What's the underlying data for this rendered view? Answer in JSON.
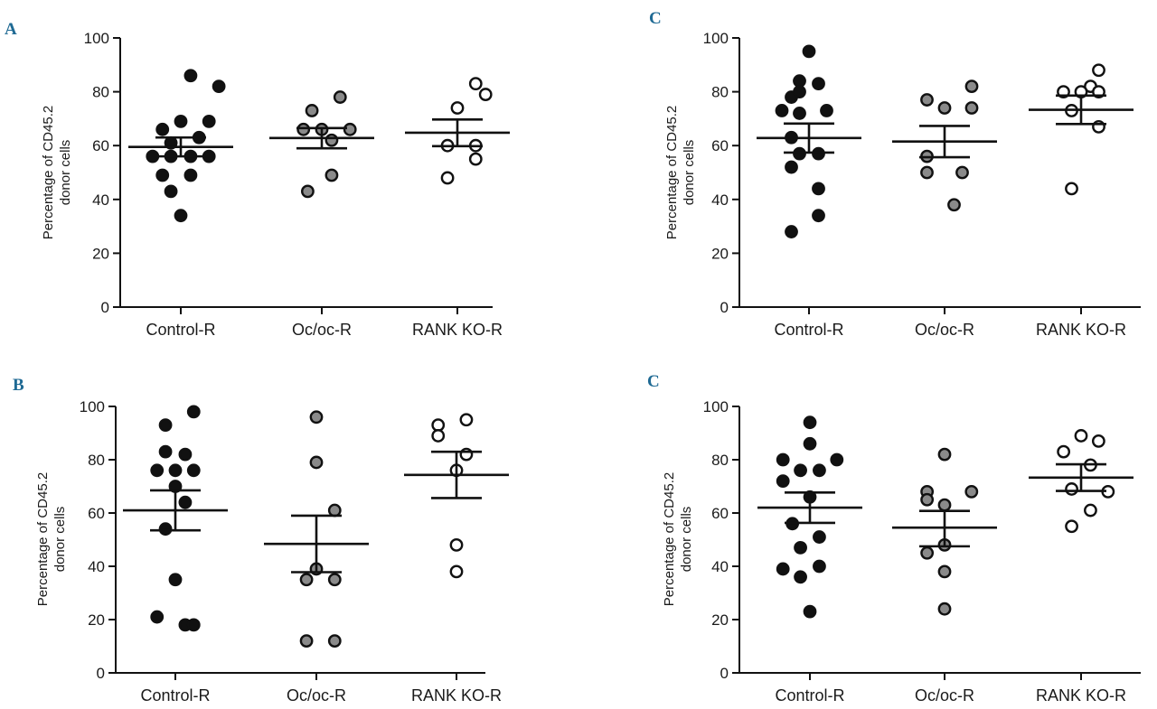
{
  "figure": {
    "letter_color": "#1f6a94",
    "mean_line_color": "#111111",
    "marker_colors": {
      "filled_black": "#111111",
      "filled_gray": "#8a8a8a",
      "open": "#ffffff"
    }
  },
  "chart_data": [
    {
      "type": "scatter",
      "panel_letter": "A",
      "ylabel": "Percentage of CD45.2\ndonor cells",
      "ylim": [
        0,
        100
      ],
      "yticks": [
        0,
        20,
        40,
        60,
        80,
        100
      ],
      "categories": [
        "Control-R",
        "Oc/oc-R",
        "RANK KO-R"
      ],
      "series": [
        {
          "name": "Control-R",
          "marker": "filled_black",
          "mean": 59.5,
          "sem": [
            56.0,
            63.0
          ],
          "points": [
            {
              "x": 0.07,
              "y": 86
            },
            {
              "x": 0.27,
              "y": 82
            },
            {
              "x": 0.0,
              "y": 69
            },
            {
              "x": 0.2,
              "y": 69
            },
            {
              "x": -0.13,
              "y": 66
            },
            {
              "x": 0.13,
              "y": 63
            },
            {
              "x": -0.07,
              "y": 61
            },
            {
              "x": -0.2,
              "y": 56
            },
            {
              "x": -0.07,
              "y": 56
            },
            {
              "x": 0.07,
              "y": 56
            },
            {
              "x": 0.2,
              "y": 56
            },
            {
              "x": -0.13,
              "y": 49
            },
            {
              "x": 0.07,
              "y": 49
            },
            {
              "x": -0.07,
              "y": 43
            },
            {
              "x": 0.0,
              "y": 34
            }
          ]
        },
        {
          "name": "Oc/oc-R",
          "marker": "filled_gray",
          "mean": 62.8,
          "sem": [
            59.0,
            66.5
          ],
          "points": [
            {
              "x": 0.13,
              "y": 78
            },
            {
              "x": -0.07,
              "y": 73
            },
            {
              "x": -0.13,
              "y": 66
            },
            {
              "x": 0.0,
              "y": 66
            },
            {
              "x": 0.2,
              "y": 66
            },
            {
              "x": 0.07,
              "y": 62
            },
            {
              "x": 0.07,
              "y": 49
            },
            {
              "x": -0.1,
              "y": 43
            }
          ]
        },
        {
          "name": "RANK KO-R",
          "marker": "open",
          "mean": 64.8,
          "sem": [
            59.8,
            69.7
          ],
          "points": [
            {
              "x": 0.13,
              "y": 83
            },
            {
              "x": 0.2,
              "y": 79
            },
            {
              "x": 0.0,
              "y": 74
            },
            {
              "x": -0.07,
              "y": 60
            },
            {
              "x": 0.13,
              "y": 60
            },
            {
              "x": 0.13,
              "y": 55
            },
            {
              "x": -0.07,
              "y": 48
            }
          ]
        }
      ]
    },
    {
      "type": "scatter",
      "panel_letter": "C",
      "ylabel": "Percentage of CD45.2\ndonor cells",
      "ylim": [
        0,
        100
      ],
      "yticks": [
        0,
        20,
        40,
        60,
        80,
        100
      ],
      "categories": [
        "Control-R",
        "Oc/oc-R",
        "RANK KO-R"
      ],
      "series": [
        {
          "name": "Control-R",
          "marker": "filled_black",
          "mean": 62.8,
          "sem": [
            57.4,
            68.2
          ],
          "points": [
            {
              "x": 0.0,
              "y": 95
            },
            {
              "x": -0.07,
              "y": 84
            },
            {
              "x": 0.07,
              "y": 83
            },
            {
              "x": -0.13,
              "y": 78
            },
            {
              "x": -0.07,
              "y": 80
            },
            {
              "x": -0.2,
              "y": 73
            },
            {
              "x": -0.07,
              "y": 72
            },
            {
              "x": 0.13,
              "y": 73
            },
            {
              "x": -0.13,
              "y": 63
            },
            {
              "x": -0.07,
              "y": 57
            },
            {
              "x": 0.07,
              "y": 57
            },
            {
              "x": -0.13,
              "y": 52
            },
            {
              "x": 0.07,
              "y": 44
            },
            {
              "x": 0.07,
              "y": 34
            },
            {
              "x": -0.13,
              "y": 28
            }
          ]
        },
        {
          "name": "Oc/oc-R",
          "marker": "filled_gray",
          "mean": 61.5,
          "sem": [
            55.7,
            67.3
          ],
          "points": [
            {
              "x": 0.2,
              "y": 82
            },
            {
              "x": -0.13,
              "y": 77
            },
            {
              "x": 0.0,
              "y": 74
            },
            {
              "x": 0.2,
              "y": 74
            },
            {
              "x": -0.13,
              "y": 56
            },
            {
              "x": -0.13,
              "y": 50
            },
            {
              "x": 0.13,
              "y": 50
            },
            {
              "x": 0.07,
              "y": 38
            }
          ]
        },
        {
          "name": "RANK KO-R",
          "marker": "open",
          "mean": 73.3,
          "sem": [
            68.0,
            78.6
          ],
          "points": [
            {
              "x": 0.13,
              "y": 88
            },
            {
              "x": 0.07,
              "y": 82
            },
            {
              "x": -0.13,
              "y": 80
            },
            {
              "x": 0.0,
              "y": 80
            },
            {
              "x": 0.13,
              "y": 80
            },
            {
              "x": -0.07,
              "y": 73
            },
            {
              "x": 0.13,
              "y": 67
            },
            {
              "x": -0.07,
              "y": 44
            }
          ]
        }
      ]
    },
    {
      "type": "scatter",
      "panel_letter": "B",
      "ylabel": "Percentage of CD45.2\ndonor cells",
      "ylim": [
        0,
        100
      ],
      "yticks": [
        0,
        20,
        40,
        60,
        80,
        100
      ],
      "categories": [
        "Control-R",
        "Oc/oc-R",
        "RANK KO-R"
      ],
      "series": [
        {
          "name": "Control-R",
          "marker": "filled_black",
          "mean": 61.0,
          "sem": [
            53.5,
            68.5
          ],
          "points": [
            {
              "x": 0.13,
              "y": 98
            },
            {
              "x": -0.07,
              "y": 93
            },
            {
              "x": -0.07,
              "y": 83
            },
            {
              "x": 0.07,
              "y": 82
            },
            {
              "x": -0.13,
              "y": 76
            },
            {
              "x": 0.0,
              "y": 76
            },
            {
              "x": 0.13,
              "y": 76
            },
            {
              "x": 0.0,
              "y": 70
            },
            {
              "x": 0.07,
              "y": 64
            },
            {
              "x": -0.07,
              "y": 54
            },
            {
              "x": 0.0,
              "y": 35
            },
            {
              "x": -0.13,
              "y": 21
            },
            {
              "x": 0.07,
              "y": 18
            },
            {
              "x": 0.13,
              "y": 18
            }
          ]
        },
        {
          "name": "Oc/oc-R",
          "marker": "filled_gray",
          "mean": 48.4,
          "sem": [
            37.8,
            59.0
          ],
          "points": [
            {
              "x": 0.0,
              "y": 96
            },
            {
              "x": 0.0,
              "y": 79
            },
            {
              "x": 0.13,
              "y": 61
            },
            {
              "x": 0.0,
              "y": 39
            },
            {
              "x": -0.07,
              "y": 35
            },
            {
              "x": 0.13,
              "y": 35
            },
            {
              "x": -0.07,
              "y": 12
            },
            {
              "x": 0.13,
              "y": 12
            }
          ]
        },
        {
          "name": "RANK KO-R",
          "marker": "open",
          "mean": 74.3,
          "sem": [
            65.6,
            83.0
          ],
          "points": [
            {
              "x": -0.13,
              "y": 93
            },
            {
              "x": 0.07,
              "y": 95
            },
            {
              "x": -0.13,
              "y": 89
            },
            {
              "x": 0.07,
              "y": 82
            },
            {
              "x": 0.0,
              "y": 76
            },
            {
              "x": 0.0,
              "y": 48
            },
            {
              "x": 0.0,
              "y": 38
            }
          ]
        }
      ]
    },
    {
      "type": "scatter",
      "panel_letter": "C",
      "ylabel": "Percentage of CD45.2\ndonor cells",
      "ylim": [
        0,
        100
      ],
      "yticks": [
        0,
        20,
        40,
        60,
        80,
        100
      ],
      "categories": [
        "Control-R",
        "Oc/oc-R",
        "RANK KO-R"
      ],
      "series": [
        {
          "name": "Control-R",
          "marker": "filled_black",
          "mean": 62.0,
          "sem": [
            56.3,
            67.7
          ],
          "points": [
            {
              "x": 0.0,
              "y": 94
            },
            {
              "x": 0.0,
              "y": 86
            },
            {
              "x": -0.2,
              "y": 80
            },
            {
              "x": 0.2,
              "y": 80
            },
            {
              "x": -0.07,
              "y": 76
            },
            {
              "x": 0.07,
              "y": 76
            },
            {
              "x": -0.2,
              "y": 72
            },
            {
              "x": 0.0,
              "y": 66
            },
            {
              "x": -0.13,
              "y": 56
            },
            {
              "x": 0.07,
              "y": 51
            },
            {
              "x": -0.07,
              "y": 47
            },
            {
              "x": -0.2,
              "y": 39
            },
            {
              "x": 0.07,
              "y": 40
            },
            {
              "x": -0.07,
              "y": 36
            },
            {
              "x": 0.0,
              "y": 23
            }
          ]
        },
        {
          "name": "Oc/oc-R",
          "marker": "filled_gray",
          "mean": 54.5,
          "sem": [
            47.5,
            60.8
          ],
          "points": [
            {
              "x": 0.0,
              "y": 82
            },
            {
              "x": -0.13,
              "y": 68
            },
            {
              "x": 0.2,
              "y": 68
            },
            {
              "x": -0.13,
              "y": 65
            },
            {
              "x": 0.0,
              "y": 63
            },
            {
              "x": 0.0,
              "y": 48
            },
            {
              "x": -0.13,
              "y": 45
            },
            {
              "x": 0.0,
              "y": 38
            },
            {
              "x": 0.0,
              "y": 24
            }
          ]
        },
        {
          "name": "RANK KO-R",
          "marker": "open",
          "mean": 73.3,
          "sem": [
            68.3,
            78.3
          ],
          "points": [
            {
              "x": 0.0,
              "y": 89
            },
            {
              "x": 0.13,
              "y": 87
            },
            {
              "x": -0.13,
              "y": 83
            },
            {
              "x": 0.07,
              "y": 78
            },
            {
              "x": -0.07,
              "y": 69
            },
            {
              "x": 0.2,
              "y": 68
            },
            {
              "x": 0.07,
              "y": 61
            },
            {
              "x": -0.07,
              "y": 55
            }
          ]
        }
      ]
    }
  ]
}
